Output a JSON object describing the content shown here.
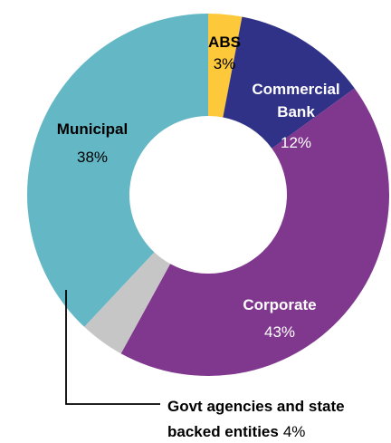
{
  "chart_data": {
    "type": "pie",
    "donut": true,
    "slices": [
      {
        "label": "ABS",
        "value": 3,
        "value_label": "3%",
        "color": "#fdc93a"
      },
      {
        "label": "Commercial Bank",
        "label_lines": [
          "Commercial",
          "Bank"
        ],
        "value": 12,
        "value_label": "12%",
        "color": "#2f3286"
      },
      {
        "label": "Corporate",
        "value": 43,
        "value_label": "43%",
        "color": "#80378e"
      },
      {
        "label": "Govt agencies and state backed entities",
        "label_lines": [
          "Govt agencies and state",
          "backed entities"
        ],
        "value": 4,
        "value_label": "4%",
        "color": "#c6c6c6"
      },
      {
        "label": "Municipal",
        "value": 38,
        "value_label": "38%",
        "color": "#64b7c5"
      }
    ]
  }
}
